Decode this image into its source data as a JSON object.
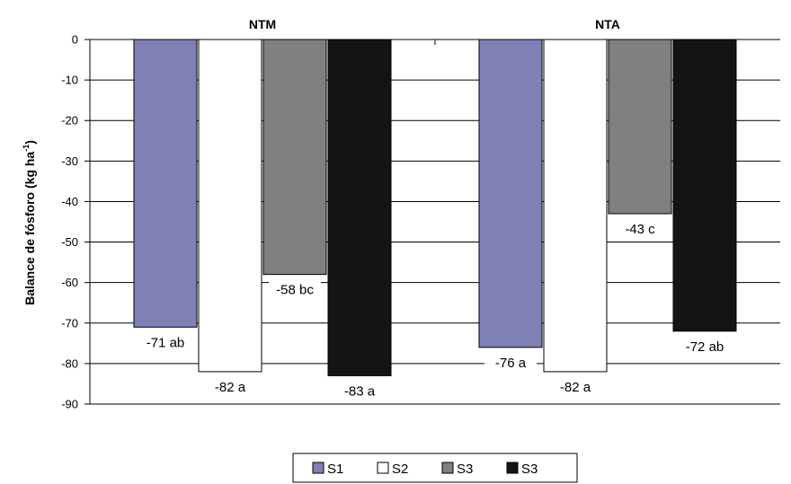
{
  "chart_data": {
    "type": "bar",
    "categories": [
      "NTM",
      "NTA"
    ],
    "ylabel_main": "Balance de fósforo (kg ha",
    "ylabel_sup": "-1",
    "ylabel_end": ")",
    "ylim": [
      -90,
      0
    ],
    "yticks": [
      0,
      -10,
      -20,
      -30,
      -40,
      -50,
      -60,
      -70,
      -80,
      -90
    ],
    "grid": true,
    "legend_position": "bottom",
    "series": [
      {
        "name": "S1",
        "color": "#7f80b3",
        "values": [
          -71,
          -76
        ],
        "labels": [
          "-71 ab",
          "-76 a"
        ]
      },
      {
        "name": "S2",
        "color": "#ffffff",
        "values": [
          -82,
          -82
        ],
        "labels": [
          "-82 a",
          "-82 a"
        ]
      },
      {
        "name": "S3",
        "color": "#808080",
        "values": [
          -58,
          -43
        ],
        "labels": [
          "-58 bc",
          "-43 c"
        ]
      },
      {
        "name": "S3",
        "color": "#141414",
        "values": [
          -83,
          -72
        ],
        "labels": [
          "-83 a",
          "-72 ab"
        ]
      }
    ]
  }
}
